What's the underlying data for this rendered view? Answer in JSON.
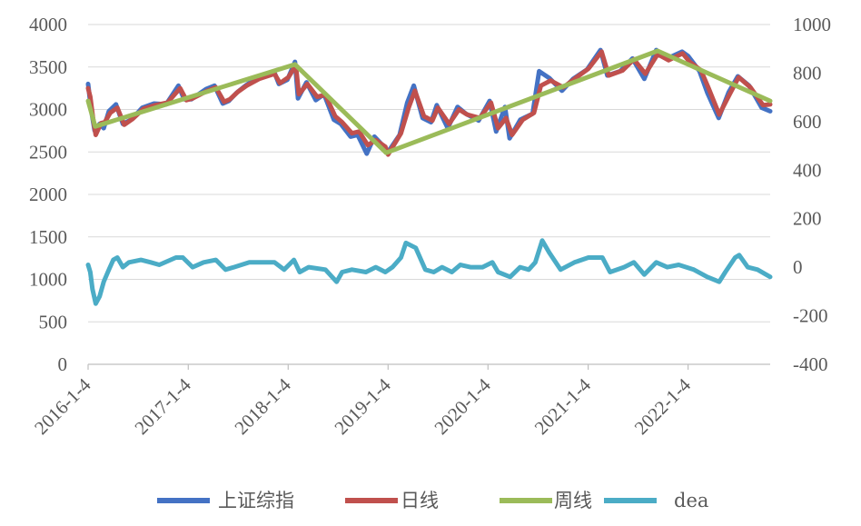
{
  "chart_data": {
    "type": "line",
    "title": "",
    "xlabel": "",
    "ylabel": "",
    "x_ticks": [
      "2016-1-4",
      "2017-1-4",
      "2018-1-4",
      "2019-1-4",
      "2020-1-4",
      "2021-1-4",
      "2022-1-4"
    ],
    "x_range": [
      "2016-01-04",
      "2022-10-31"
    ],
    "y_left": {
      "range": [
        0,
        4000
      ],
      "ticks": [
        0,
        500,
        1000,
        1500,
        2000,
        2500,
        3000,
        3500,
        4000
      ]
    },
    "y_right": {
      "range": [
        -400,
        1000
      ],
      "ticks": [
        -400,
        -200,
        0,
        200,
        400,
        600,
        800,
        1000
      ]
    },
    "grid": true,
    "legend_position": "bottom",
    "series": [
      {
        "name": "上证综指",
        "axis": "left",
        "color": "#4472C4",
        "points": [
          [
            "2016-01-04",
            3300
          ],
          [
            "2016-01-08",
            3190
          ],
          [
            "2016-01-15",
            3000
          ],
          [
            "2016-01-28",
            2750
          ],
          [
            "2016-02-15",
            2830
          ],
          [
            "2016-03-01",
            2780
          ],
          [
            "2016-03-20",
            2980
          ],
          [
            "2016-04-15",
            3060
          ],
          [
            "2016-05-10",
            2830
          ],
          [
            "2016-06-10",
            2880
          ],
          [
            "2016-07-20",
            3020
          ],
          [
            "2016-09-01",
            3070
          ],
          [
            "2016-10-15",
            3060
          ],
          [
            "2016-11-29",
            3280
          ],
          [
            "2016-12-20",
            3120
          ],
          [
            "2017-01-15",
            3120
          ],
          [
            "2017-03-10",
            3240
          ],
          [
            "2017-04-10",
            3280
          ],
          [
            "2017-05-10",
            3070
          ],
          [
            "2017-06-01",
            3100
          ],
          [
            "2017-07-01",
            3200
          ],
          [
            "2017-08-01",
            3280
          ],
          [
            "2017-09-15",
            3380
          ],
          [
            "2017-11-13",
            3450
          ],
          [
            "2017-12-01",
            3300
          ],
          [
            "2018-01-01",
            3350
          ],
          [
            "2018-01-29",
            3560
          ],
          [
            "2018-02-09",
            3130
          ],
          [
            "2018-03-12",
            3320
          ],
          [
            "2018-04-15",
            3110
          ],
          [
            "2018-05-15",
            3180
          ],
          [
            "2018-06-20",
            2880
          ],
          [
            "2018-07-15",
            2830
          ],
          [
            "2018-08-20",
            2680
          ],
          [
            "2018-09-15",
            2700
          ],
          [
            "2018-10-18",
            2480
          ],
          [
            "2018-11-15",
            2680
          ],
          [
            "2018-12-20",
            2560
          ],
          [
            "2019-01-04",
            2500
          ],
          [
            "2019-02-15",
            2700
          ],
          [
            "2019-03-15",
            3080
          ],
          [
            "2019-04-08",
            3280
          ],
          [
            "2019-05-10",
            2900
          ],
          [
            "2019-06-10",
            2850
          ],
          [
            "2019-07-01",
            3050
          ],
          [
            "2019-08-10",
            2780
          ],
          [
            "2019-09-15",
            3030
          ],
          [
            "2019-10-15",
            2950
          ],
          [
            "2019-12-01",
            2870
          ],
          [
            "2020-01-10",
            3100
          ],
          [
            "2020-02-03",
            2740
          ],
          [
            "2020-03-06",
            3030
          ],
          [
            "2020-03-23",
            2660
          ],
          [
            "2020-05-01",
            2880
          ],
          [
            "2020-06-15",
            2950
          ],
          [
            "2020-07-09",
            3450
          ],
          [
            "2020-08-15",
            3370
          ],
          [
            "2020-09-30",
            3220
          ],
          [
            "2020-11-10",
            3360
          ],
          [
            "2020-12-31",
            3470
          ],
          [
            "2021-02-18",
            3700
          ],
          [
            "2021-03-15",
            3400
          ],
          [
            "2021-05-01",
            3450
          ],
          [
            "2021-06-15",
            3600
          ],
          [
            "2021-07-28",
            3360
          ],
          [
            "2021-09-10",
            3700
          ],
          [
            "2021-10-20",
            3600
          ],
          [
            "2021-12-13",
            3680
          ],
          [
            "2022-01-04",
            3630
          ],
          [
            "2022-02-15",
            3450
          ],
          [
            "2022-03-15",
            3200
          ],
          [
            "2022-04-26",
            2900
          ],
          [
            "2022-06-01",
            3200
          ],
          [
            "2022-07-05",
            3390
          ],
          [
            "2022-08-15",
            3280
          ],
          [
            "2022-09-30",
            3020
          ],
          [
            "2022-10-31",
            2980
          ]
        ]
      },
      {
        "name": "日线",
        "axis": "left",
        "color": "#C0504D",
        "points": [
          [
            "2016-01-04",
            3250
          ],
          [
            "2016-01-12",
            3150
          ],
          [
            "2016-01-22",
            2900
          ],
          [
            "2016-02-01",
            2700
          ],
          [
            "2016-02-20",
            2840
          ],
          [
            "2016-03-05",
            2850
          ],
          [
            "2016-03-25",
            2960
          ],
          [
            "2016-04-20",
            3020
          ],
          [
            "2016-05-15",
            2820
          ],
          [
            "2016-06-15",
            2890
          ],
          [
            "2016-07-25",
            3010
          ],
          [
            "2016-09-05",
            3050
          ],
          [
            "2016-10-20",
            3080
          ],
          [
            "2016-12-05",
            3250
          ],
          [
            "2016-12-28",
            3110
          ],
          [
            "2017-01-20",
            3130
          ],
          [
            "2017-03-15",
            3220
          ],
          [
            "2017-04-15",
            3260
          ],
          [
            "2017-05-15",
            3090
          ],
          [
            "2017-06-05",
            3120
          ],
          [
            "2017-07-05",
            3210
          ],
          [
            "2017-08-05",
            3280
          ],
          [
            "2017-09-20",
            3360
          ],
          [
            "2017-11-15",
            3420
          ],
          [
            "2017-12-05",
            3310
          ],
          [
            "2018-01-05",
            3380
          ],
          [
            "2018-02-01",
            3520
          ],
          [
            "2018-02-12",
            3180
          ],
          [
            "2018-03-15",
            3300
          ],
          [
            "2018-04-20",
            3150
          ],
          [
            "2018-05-20",
            3170
          ],
          [
            "2018-06-25",
            2920
          ],
          [
            "2018-07-20",
            2850
          ],
          [
            "2018-08-25",
            2720
          ],
          [
            "2018-09-20",
            2740
          ],
          [
            "2018-10-22",
            2580
          ],
          [
            "2018-11-20",
            2640
          ],
          [
            "2018-12-25",
            2560
          ],
          [
            "2019-01-04",
            2470
          ],
          [
            "2019-02-20",
            2720
          ],
          [
            "2019-03-20",
            3020
          ],
          [
            "2019-04-12",
            3220
          ],
          [
            "2019-05-15",
            2920
          ],
          [
            "2019-06-15",
            2870
          ],
          [
            "2019-07-05",
            3020
          ],
          [
            "2019-08-15",
            2830
          ],
          [
            "2019-09-20",
            3000
          ],
          [
            "2019-10-20",
            2940
          ],
          [
            "2019-12-05",
            2900
          ],
          [
            "2020-01-15",
            3080
          ],
          [
            "2020-02-10",
            2780
          ],
          [
            "2020-03-10",
            2900
          ],
          [
            "2020-04-01",
            2700
          ],
          [
            "2020-05-10",
            2880
          ],
          [
            "2020-06-20",
            2960
          ],
          [
            "2020-07-15",
            3280
          ],
          [
            "2020-08-20",
            3340
          ],
          [
            "2020-10-05",
            3260
          ],
          [
            "2020-11-15",
            3360
          ],
          [
            "2021-01-05",
            3480
          ],
          [
            "2021-02-22",
            3680
          ],
          [
            "2021-03-20",
            3400
          ],
          [
            "2021-05-10",
            3460
          ],
          [
            "2021-06-20",
            3590
          ],
          [
            "2021-08-01",
            3420
          ],
          [
            "2021-09-15",
            3650
          ],
          [
            "2021-10-25",
            3580
          ],
          [
            "2021-12-15",
            3660
          ],
          [
            "2022-01-10",
            3560
          ],
          [
            "2022-02-20",
            3460
          ],
          [
            "2022-03-20",
            3250
          ],
          [
            "2022-04-28",
            2940
          ],
          [
            "2022-06-05",
            3180
          ],
          [
            "2022-07-08",
            3380
          ],
          [
            "2022-08-20",
            3260
          ],
          [
            "2022-10-05",
            3050
          ],
          [
            "2022-10-31",
            3060
          ]
        ]
      },
      {
        "name": "周线",
        "axis": "left",
        "color": "#9BBB59",
        "points": [
          [
            "2016-01-04",
            3100
          ],
          [
            "2016-01-30",
            2800
          ],
          [
            "2018-01-29",
            3530
          ],
          [
            "2018-12-28",
            2490
          ],
          [
            "2021-09-15",
            3690
          ],
          [
            "2022-10-31",
            3100
          ]
        ]
      },
      {
        "name": "dea",
        "axis": "right",
        "color": "#4BACC6",
        "points": [
          [
            "2016-01-04",
            10
          ],
          [
            "2016-01-12",
            -20
          ],
          [
            "2016-01-20",
            -90
          ],
          [
            "2016-02-01",
            -150
          ],
          [
            "2016-02-15",
            -120
          ],
          [
            "2016-03-01",
            -60
          ],
          [
            "2016-03-20",
            -10
          ],
          [
            "2016-04-05",
            30
          ],
          [
            "2016-04-20",
            40
          ],
          [
            "2016-05-10",
            0
          ],
          [
            "2016-06-01",
            20
          ],
          [
            "2016-07-15",
            30
          ],
          [
            "2016-08-20",
            20
          ],
          [
            "2016-09-20",
            10
          ],
          [
            "2016-11-20",
            40
          ],
          [
            "2016-12-15",
            40
          ],
          [
            "2017-01-20",
            0
          ],
          [
            "2017-03-01",
            20
          ],
          [
            "2017-04-15",
            30
          ],
          [
            "2017-05-20",
            -10
          ],
          [
            "2017-06-20",
            0
          ],
          [
            "2017-08-15",
            20
          ],
          [
            "2017-10-01",
            20
          ],
          [
            "2017-11-15",
            20
          ],
          [
            "2017-12-20",
            -10
          ],
          [
            "2018-01-25",
            30
          ],
          [
            "2018-02-15",
            -20
          ],
          [
            "2018-03-20",
            0
          ],
          [
            "2018-05-20",
            -10
          ],
          [
            "2018-06-30",
            -60
          ],
          [
            "2018-07-20",
            -20
          ],
          [
            "2018-08-25",
            -10
          ],
          [
            "2018-10-15",
            -20
          ],
          [
            "2018-11-20",
            0
          ],
          [
            "2018-12-25",
            -20
          ],
          [
            "2019-01-20",
            0
          ],
          [
            "2019-02-20",
            40
          ],
          [
            "2019-03-10",
            100
          ],
          [
            "2019-04-15",
            80
          ],
          [
            "2019-05-20",
            -10
          ],
          [
            "2019-06-20",
            -20
          ],
          [
            "2019-07-20",
            0
          ],
          [
            "2019-08-25",
            -20
          ],
          [
            "2019-09-25",
            10
          ],
          [
            "2019-11-01",
            0
          ],
          [
            "2019-12-15",
            0
          ],
          [
            "2020-01-20",
            20
          ],
          [
            "2020-02-10",
            -20
          ],
          [
            "2020-03-25",
            -40
          ],
          [
            "2020-04-30",
            0
          ],
          [
            "2020-06-01",
            -10
          ],
          [
            "2020-06-25",
            20
          ],
          [
            "2020-07-20",
            110
          ],
          [
            "2020-08-15",
            60
          ],
          [
            "2020-09-25",
            -10
          ],
          [
            "2020-11-15",
            20
          ],
          [
            "2021-01-05",
            40
          ],
          [
            "2021-02-25",
            40
          ],
          [
            "2021-03-25",
            -20
          ],
          [
            "2021-05-15",
            0
          ],
          [
            "2021-06-20",
            20
          ],
          [
            "2021-07-28",
            -30
          ],
          [
            "2021-09-10",
            20
          ],
          [
            "2021-10-20",
            0
          ],
          [
            "2021-12-01",
            10
          ],
          [
            "2022-01-25",
            -10
          ],
          [
            "2022-03-15",
            -40
          ],
          [
            "2022-04-28",
            -60
          ],
          [
            "2022-05-20",
            -20
          ],
          [
            "2022-06-25",
            40
          ],
          [
            "2022-07-10",
            50
          ],
          [
            "2022-08-10",
            0
          ],
          [
            "2022-09-15",
            -10
          ],
          [
            "2022-10-31",
            -40
          ]
        ]
      }
    ]
  }
}
